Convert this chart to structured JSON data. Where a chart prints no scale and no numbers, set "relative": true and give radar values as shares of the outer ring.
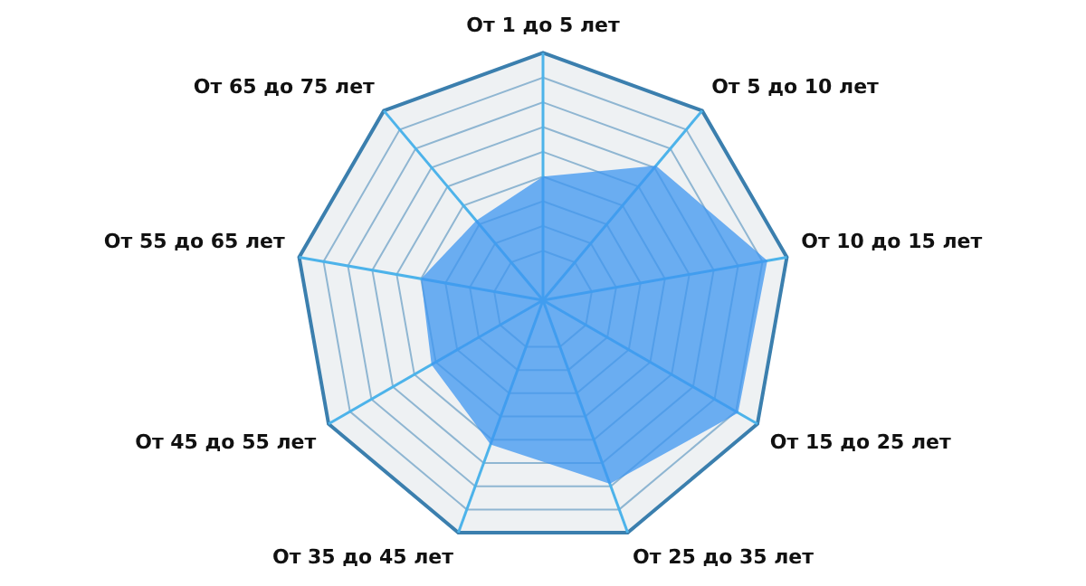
{
  "chart_data": {
    "type": "radar",
    "relative": true,
    "grid": true,
    "legend": false,
    "categories": [
      "От 1 до 5 лет",
      "От 5 до 10 лет",
      "От 10 до 15 лет",
      "От 15 до 25 лет",
      "От 25 до 35 лет",
      "От 35 до 45 лет",
      "От 45 до 55 лет",
      "От 55 до 65 лет",
      "От 65 до 75 лет"
    ],
    "series": [
      {
        "color": "#3d95f0",
        "values": [
          0.5,
          0.71,
          0.92,
          0.91,
          0.79,
          0.62,
          0.52,
          0.5,
          0.42
        ]
      }
    ]
  }
}
